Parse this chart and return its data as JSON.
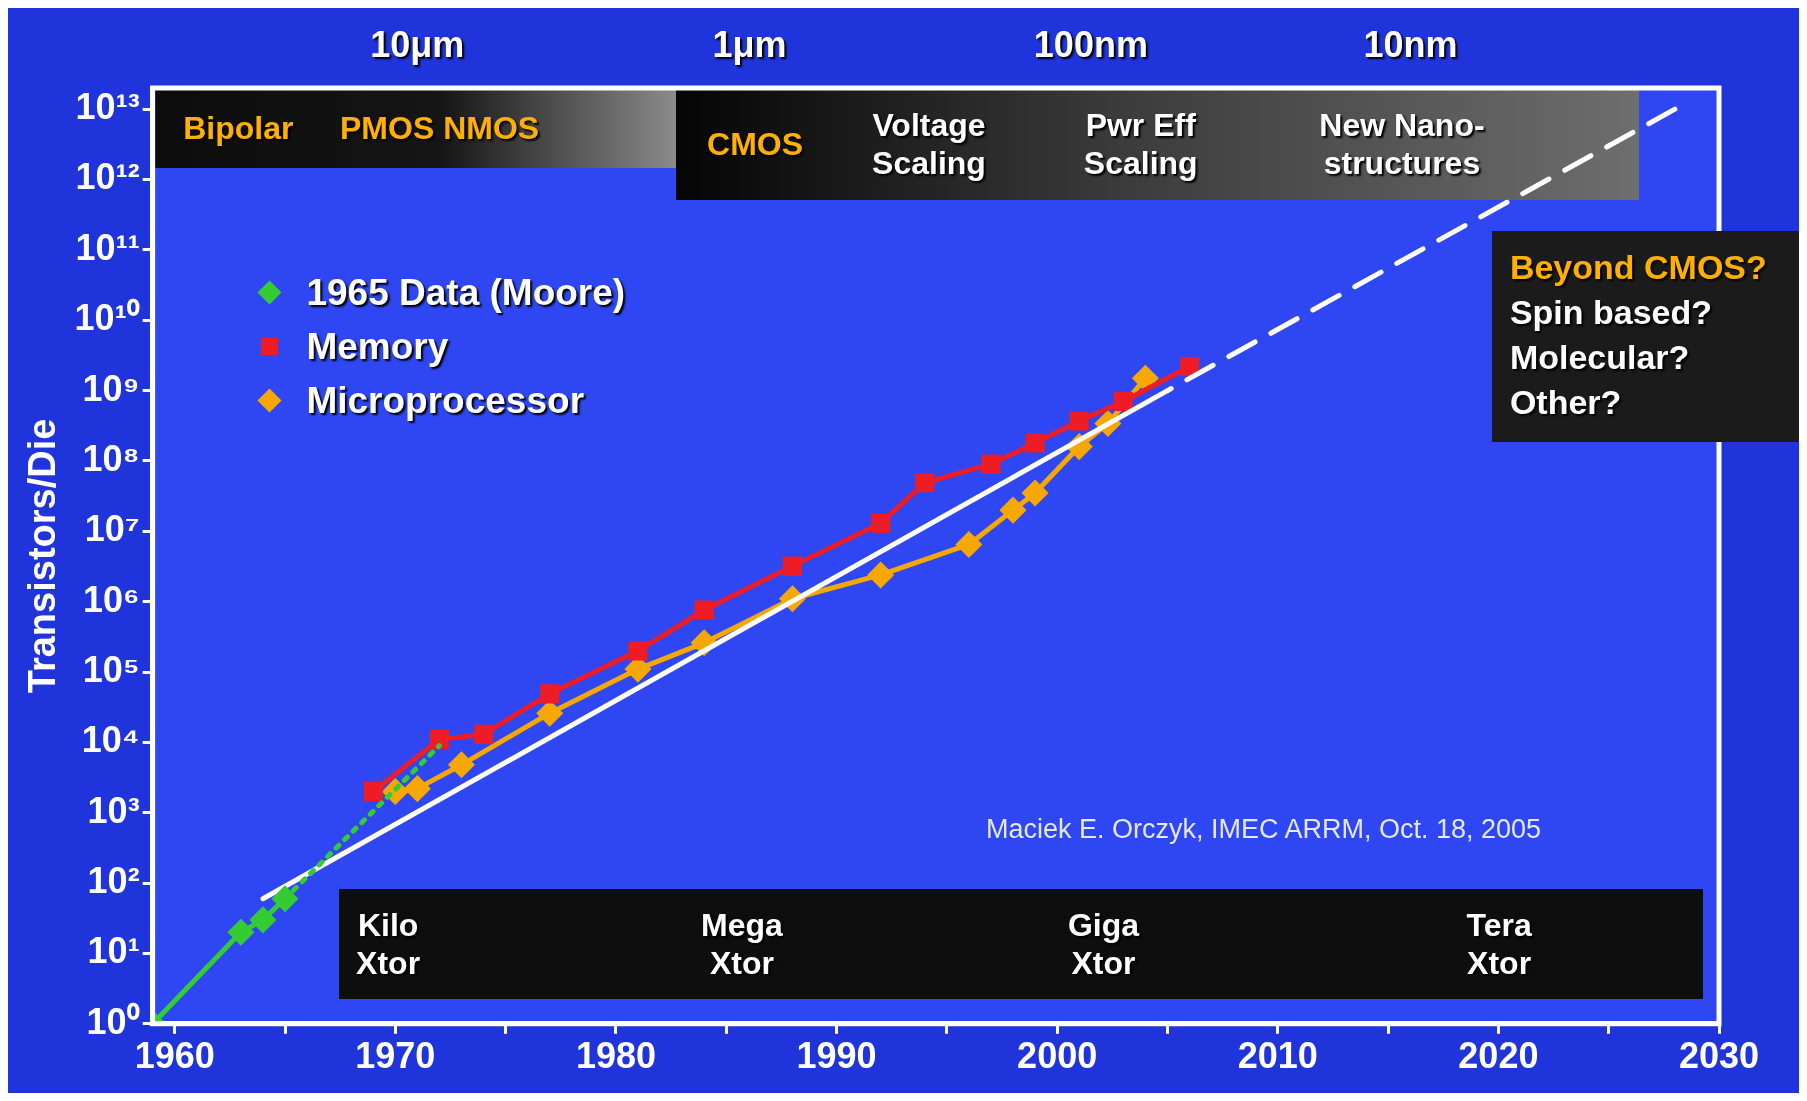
{
  "chart_data": {
    "type": "line",
    "ylabel": "Transistors/Die",
    "log": "y",
    "grid": false,
    "legend": "top left",
    "xlim": [
      1959,
      2030
    ],
    "xticks": [
      1960,
      {
        "value": 1965,
        "label": null
      },
      1970,
      {
        "value": 1975,
        "label": null
      },
      1980,
      {
        "value": 1985,
        "label": null
      },
      1990,
      {
        "value": 1995,
        "label": null
      },
      2000,
      {
        "value": 2005,
        "label": null
      },
      2010,
      {
        "value": 2015,
        "label": null
      },
      2020,
      {
        "value": 2025,
        "label": null
      },
      2030
    ],
    "ylim": [
      1,
      20000000000000.0
    ],
    "yticks": [
      {
        "value": 1,
        "label": "10⁰"
      },
      {
        "value": 10,
        "label": "10¹"
      },
      {
        "value": 100,
        "label": "10²"
      },
      {
        "value": 1000,
        "label": "10³"
      },
      {
        "value": 10000,
        "label": "10⁴"
      },
      {
        "value": 100000,
        "label": "10⁵"
      },
      {
        "value": 1000000,
        "label": "10⁶"
      },
      {
        "value": 10000000,
        "label": "10⁷"
      },
      {
        "value": 100000000,
        "label": "10⁸"
      },
      {
        "value": 1000000000,
        "label": "10⁹"
      },
      {
        "value": 10000000000,
        "label": "10¹⁰"
      },
      {
        "value": 100000000000,
        "label": "10¹¹"
      },
      {
        "value": 1000000000000,
        "label": "10¹²"
      },
      {
        "value": 10000000000000,
        "label": "10¹³"
      }
    ],
    "series": [
      {
        "name": "1965 Data (Moore)",
        "color": "#33cc33",
        "marker": "diamond",
        "line_style": "solid",
        "x": [
          1959,
          1963,
          1964,
          1965
        ],
        "values": [
          1,
          20,
          30,
          60
        ]
      },
      {
        "color": "#33cc33",
        "marker": "none",
        "line_style": "dotted",
        "x": [
          1965,
          1972
        ],
        "values": [
          60,
          9000
        ]
      },
      {
        "color": "#ffffff",
        "marker": "none",
        "line_style": "solid",
        "x": [
          1964,
          2005
        ],
        "values": [
          60,
          1000000000
        ]
      },
      {
        "color": "#ffffff",
        "marker": "none",
        "line_style": "dashed",
        "x": [
          2028,
          2005
        ],
        "values": [
          10000000000000,
          1000000000
        ]
      },
      {
        "name": "Memory",
        "color": "#ee1c25",
        "marker": "square",
        "line_style": "solid",
        "x": [
          1969,
          1972,
          1974,
          1977,
          1981,
          1984,
          1988,
          1992,
          1994,
          1997,
          1999,
          2001,
          2003,
          2006
        ],
        "values": [
          2000,
          11000,
          13000,
          49000,
          200000,
          760000,
          3200000,
          13000000,
          49000000,
          90000000,
          180000000,
          370000000,
          700000000,
          2200000000
        ]
      },
      {
        "name": "Microprocessor",
        "color": "#f7a800",
        "marker": "diamond",
        "line_style": "solid",
        "x": [
          1970,
          1971,
          1973,
          1977,
          1981,
          1984,
          1988,
          1992,
          1996,
          1998,
          1999,
          2001,
          2002.3,
          2004
        ],
        "values": [
          2000,
          2200,
          4800,
          26000,
          110000,
          260000,
          1100000,
          2400000,
          6500000,
          20000000,
          35000000,
          160000000,
          340000000,
          1500000000
        ]
      }
    ],
    "annotations": [
      "10μm",
      "1μm",
      "100nm",
      "10nm",
      "Bipolar",
      "PMOS NMOS",
      "CMOS",
      "Voltage Scaling",
      "Pwr Eff Scaling",
      "New Nano-structures",
      "Kilo Xtor",
      "Mega Xtor",
      "Giga Xtor",
      "Tera Xtor",
      "Beyond CMOS?",
      "Spin based?",
      "Molecular?",
      "Other?",
      "Maciek E. Orczyk, IMEC ARRM, Oct. 18, 2005"
    ]
  }
}
